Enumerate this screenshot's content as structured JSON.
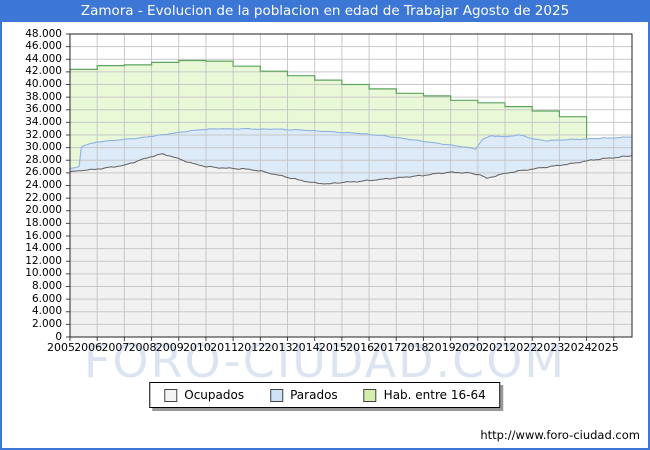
{
  "window": {
    "title": "Zamora - Evolucion de la poblacion en edad de Trabajar Agosto de 2025",
    "watermark": "FORO-CIUDAD.COM",
    "footer_url": "http://www.foro-ciudad.com",
    "title_bar_color": "#3c77d6"
  },
  "legend": {
    "items": [
      {
        "label": "Ocupados",
        "swatch": "#f4f4f4"
      },
      {
        "label": "Parados",
        "swatch": "#cfe2f5"
      },
      {
        "label": "Hab. entre 16-64",
        "swatch": "#d4eeab"
      }
    ]
  },
  "chart_data": {
    "type": "area",
    "title": "Zamora - Evolucion de la poblacion en edad de Trabajar Agosto de 2025",
    "grid": true,
    "legend_position": "bottom",
    "x_axis": {
      "range": [
        2005,
        2025.67
      ],
      "tick_labels": [
        "2005",
        "2006",
        "2007",
        "2008",
        "2009",
        "2010",
        "2011",
        "2012",
        "2013",
        "2014",
        "2015",
        "2016",
        "2017",
        "2018",
        "2019",
        "2020",
        "2021",
        "2022",
        "2023",
        "2024",
        "2025"
      ]
    },
    "y_axis": {
      "range": [
        0,
        48000
      ],
      "tick_step": 2000,
      "tick_labels": [
        "0",
        "2.000",
        "4.000",
        "6.000",
        "8.000",
        "10.000",
        "12.000",
        "14.000",
        "16.000",
        "18.000",
        "20.000",
        "22.000",
        "24.000",
        "26.000",
        "28.000",
        "30.000",
        "32.000",
        "34.000",
        "36.000",
        "38.000",
        "40.000",
        "42.000",
        "44.000",
        "46.000",
        "48.000"
      ]
    },
    "series": [
      {
        "name": "Hab. entre 16-64",
        "render": "annual_steps",
        "line_color": "#5fa45f",
        "fill_color": "#e9f8d7",
        "years": [
          2005,
          2006,
          2007,
          2008,
          2009,
          2010,
          2011,
          2012,
          2013,
          2014,
          2015,
          2016,
          2017,
          2018,
          2019,
          2020,
          2021,
          2022,
          2023
        ],
        "values": [
          42400,
          43000,
          43100,
          43500,
          43800,
          43700,
          42900,
          42100,
          41400,
          40700,
          40000,
          39300,
          38600,
          38200,
          37500,
          37100,
          36500,
          35800,
          34900
        ],
        "ends_at": 2024
      },
      {
        "name": "Parados",
        "render": "stacked_band_top",
        "note": "blue line = Ocupados + Parados (band between gray and blue lines)",
        "line_color": "#8fb2e2",
        "fill_color": "#ddeaf8",
        "points": [
          [
            2005.0,
            26700
          ],
          [
            2005.33,
            26900
          ],
          [
            2005.42,
            30200
          ],
          [
            2005.75,
            30600
          ],
          [
            2006.0,
            30900
          ],
          [
            2006.5,
            31100
          ],
          [
            2007.0,
            31300
          ],
          [
            2007.5,
            31500
          ],
          [
            2008.0,
            31800
          ],
          [
            2008.5,
            32100
          ],
          [
            2009.0,
            32400
          ],
          [
            2009.5,
            32700
          ],
          [
            2010.0,
            32900
          ],
          [
            2010.5,
            33000
          ],
          [
            2011.0,
            32950
          ],
          [
            2011.5,
            33000
          ],
          [
            2012.0,
            32900
          ],
          [
            2012.5,
            32950
          ],
          [
            2013.0,
            32850
          ],
          [
            2013.5,
            32800
          ],
          [
            2014.0,
            32650
          ],
          [
            2014.5,
            32550
          ],
          [
            2015.0,
            32400
          ],
          [
            2015.5,
            32300
          ],
          [
            2016.0,
            32100
          ],
          [
            2016.5,
            31900
          ],
          [
            2017.0,
            31600
          ],
          [
            2017.5,
            31300
          ],
          [
            2018.0,
            31000
          ],
          [
            2018.5,
            30700
          ],
          [
            2019.0,
            30400
          ],
          [
            2019.5,
            30100
          ],
          [
            2019.92,
            29800
          ],
          [
            2020.17,
            31300
          ],
          [
            2020.5,
            31900
          ],
          [
            2021.0,
            31700
          ],
          [
            2021.5,
            32000
          ],
          [
            2021.75,
            31800
          ],
          [
            2022.0,
            31400
          ],
          [
            2022.5,
            31100
          ],
          [
            2023.0,
            31200
          ],
          [
            2023.5,
            31300
          ],
          [
            2024.0,
            31350
          ],
          [
            2024.5,
            31500
          ],
          [
            2025.0,
            31550
          ],
          [
            2025.62,
            31700
          ]
        ]
      },
      {
        "name": "Ocupados",
        "render": "line_area",
        "line_color": "#606060",
        "fill_color": "#f1f1f1",
        "points": [
          [
            2005.0,
            26200
          ],
          [
            2005.5,
            26400
          ],
          [
            2006.0,
            26600
          ],
          [
            2006.5,
            26900
          ],
          [
            2007.0,
            27200
          ],
          [
            2007.5,
            27900
          ],
          [
            2008.0,
            28600
          ],
          [
            2008.4,
            29000
          ],
          [
            2008.75,
            28600
          ],
          [
            2009.0,
            28200
          ],
          [
            2009.5,
            27500
          ],
          [
            2010.0,
            27000
          ],
          [
            2010.5,
            26800
          ],
          [
            2011.0,
            26700
          ],
          [
            2011.5,
            26600
          ],
          [
            2012.0,
            26300
          ],
          [
            2012.5,
            25800
          ],
          [
            2013.0,
            25300
          ],
          [
            2013.5,
            24800
          ],
          [
            2014.0,
            24400
          ],
          [
            2014.5,
            24250
          ],
          [
            2015.0,
            24500
          ],
          [
            2015.5,
            24600
          ],
          [
            2016.0,
            24800
          ],
          [
            2016.5,
            25000
          ],
          [
            2017.0,
            25200
          ],
          [
            2017.5,
            25400
          ],
          [
            2018.0,
            25600
          ],
          [
            2018.5,
            25900
          ],
          [
            2019.0,
            26100
          ],
          [
            2019.6,
            26000
          ],
          [
            2020.1,
            25700
          ],
          [
            2020.33,
            25100
          ],
          [
            2020.7,
            25600
          ],
          [
            2021.0,
            25900
          ],
          [
            2021.5,
            26300
          ],
          [
            2022.0,
            26600
          ],
          [
            2022.5,
            26900
          ],
          [
            2023.0,
            27200
          ],
          [
            2023.5,
            27500
          ],
          [
            2024.0,
            27900
          ],
          [
            2024.5,
            28200
          ],
          [
            2025.0,
            28400
          ],
          [
            2025.62,
            28700
          ]
        ]
      }
    ]
  }
}
